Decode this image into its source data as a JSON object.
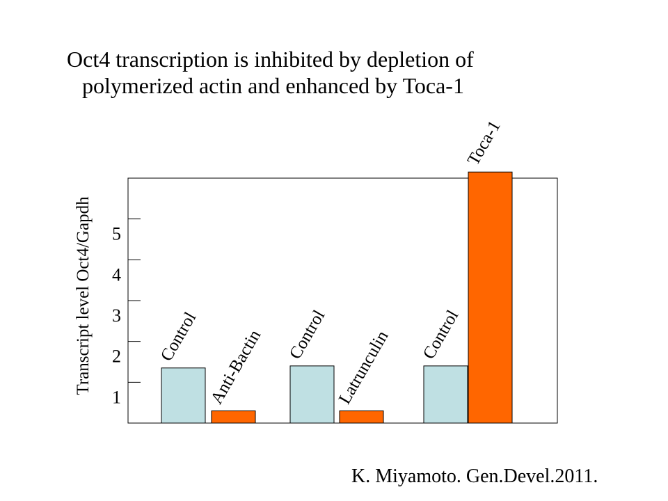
{
  "slide": {
    "title_line1": "Oct4 transcription is inhibited by depletion of",
    "title_line2": "polymerized actin and enhanced by Toca-1",
    "citation": "K. Miyamoto. Gen.Devel.2011."
  },
  "chart_data": {
    "type": "bar",
    "title": "",
    "ylabel": "Transcript level Oct4/Gapdh",
    "xlabel": "",
    "ylim": [
      0,
      6
    ],
    "yticks": [
      1,
      2,
      3,
      4,
      5
    ],
    "categories": [
      "Control",
      "Anti-Bactin",
      "Control",
      "Latrunculin",
      "Control",
      "Toca-1"
    ],
    "values": [
      1.35,
      0.3,
      1.4,
      0.3,
      1.4,
      6.15
    ],
    "colors": [
      "#bfe0e3",
      "#ff6600",
      "#bfe0e3",
      "#ff6600",
      "#bfe0e3",
      "#ff6600"
    ],
    "grid": false,
    "legend": "none"
  }
}
